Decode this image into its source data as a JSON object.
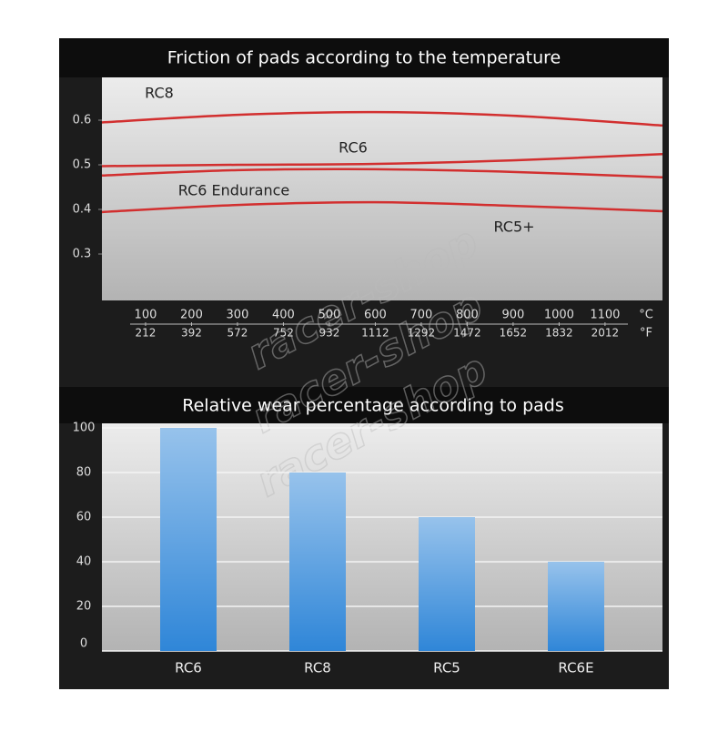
{
  "chart_data": [
    {
      "type": "line",
      "title": "Friction of pads according to the temperature",
      "x": [
        5,
        300,
        600,
        900,
        1225
      ],
      "xlim": [
        5,
        1225
      ],
      "xticks": [
        100,
        200,
        300,
        400,
        500,
        600,
        700,
        800,
        900,
        1000,
        1100
      ],
      "xunit": "°C",
      "x2ticks": [
        212,
        392,
        572,
        752,
        932,
        1112,
        1292,
        1472,
        1652,
        1832,
        2012
      ],
      "x2unit": "°F",
      "ylim": [
        0.2,
        0.7
      ],
      "yticks": [
        0.3,
        0.4,
        0.5,
        0.6
      ],
      "grid": false,
      "series": [
        {
          "name": "RC8",
          "color": "#d22f2f",
          "values": [
            0.595,
            0.612,
            0.618,
            0.61,
            0.588
          ]
        },
        {
          "name": "RC6",
          "color": "#d22f2f",
          "values": [
            0.497,
            0.5,
            0.502,
            0.51,
            0.524
          ]
        },
        {
          "name": "RC6 Endurance",
          "color": "#d22f2f",
          "values": [
            0.476,
            0.488,
            0.49,
            0.484,
            0.472
          ]
        },
        {
          "name": "RC5+",
          "color": "#d22f2f",
          "values": [
            0.394,
            0.41,
            0.416,
            0.408,
            0.396
          ]
        }
      ]
    },
    {
      "type": "bar",
      "title": "Relative wear percentage according to pads",
      "categories": [
        "RC6",
        "RC8",
        "RC5",
        "RC6E"
      ],
      "values": [
        100,
        80,
        60,
        40
      ],
      "color": "#2f86d8",
      "ylim": [
        0,
        100
      ],
      "yticks": [
        0,
        20,
        40,
        60,
        80,
        100
      ],
      "grid": true
    }
  ],
  "watermark": "racer-shop"
}
